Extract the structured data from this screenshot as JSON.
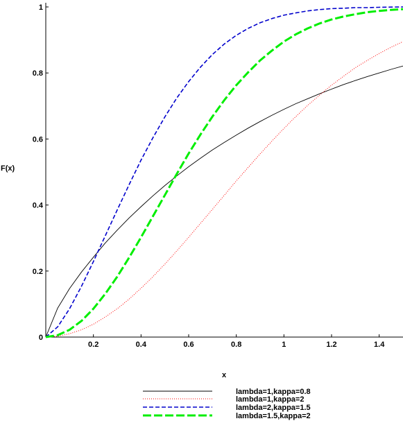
{
  "chart_data": {
    "type": "line",
    "title": "",
    "xlabel": "x",
    "ylabel": "F(x)",
    "xlim": [
      0,
      1.5
    ],
    "ylim": [
      0,
      1
    ],
    "x_ticks": [
      0.2,
      0.4,
      0.6,
      0.8,
      1,
      1.2,
      1.4
    ],
    "x_tick_labels": [
      "0.2",
      "0.4",
      "0.6",
      "0.8",
      "1",
      "1.2",
      "1.4"
    ],
    "y_ticks": [
      0,
      0.2,
      0.4,
      0.6,
      0.8,
      1
    ],
    "y_tick_labels": [
      "0",
      "0.2",
      "0.4",
      "0.6",
      "0.8",
      "1"
    ],
    "grid": false,
    "legend_position": "bottom",
    "x": [
      0,
      0.05,
      0.1,
      0.15,
      0.2,
      0.25,
      0.3,
      0.35,
      0.4,
      0.45,
      0.5,
      0.55,
      0.6,
      0.65,
      0.7,
      0.75,
      0.8,
      0.85,
      0.9,
      0.95,
      1,
      1.05,
      1.1,
      1.15,
      1.2,
      1.25,
      1.3,
      1.35,
      1.4,
      1.45,
      1.5
    ],
    "series": [
      {
        "name": "lambda=1,kappa=0.8",
        "color": "#000000",
        "style": "solid",
        "values": [
          0,
          0.088,
          0.147,
          0.197,
          0.242,
          0.285,
          0.324,
          0.361,
          0.395,
          0.428,
          0.459,
          0.488,
          0.516,
          0.542,
          0.567,
          0.59,
          0.612,
          0.633,
          0.653,
          0.672,
          0.69,
          0.707,
          0.722,
          0.737,
          0.751,
          0.765,
          0.777,
          0.789,
          0.8,
          0.811,
          0.821
        ]
      },
      {
        "name": "lambda=1,kappa=2",
        "color": "#ff0000",
        "style": "dotted",
        "values": [
          0,
          0.0025,
          0.01,
          0.022,
          0.039,
          0.061,
          0.086,
          0.115,
          0.148,
          0.183,
          0.221,
          0.261,
          0.302,
          0.345,
          0.387,
          0.43,
          0.473,
          0.514,
          0.555,
          0.594,
          0.632,
          0.668,
          0.702,
          0.733,
          0.763,
          0.79,
          0.816,
          0.838,
          0.859,
          0.878,
          0.895
        ]
      },
      {
        "name": "lambda=2,kappa=1.5",
        "color": "#0000cc",
        "style": "dashed",
        "values": [
          0,
          0.031,
          0.086,
          0.154,
          0.229,
          0.307,
          0.385,
          0.462,
          0.536,
          0.604,
          0.667,
          0.724,
          0.774,
          0.818,
          0.856,
          0.888,
          0.914,
          0.935,
          0.952,
          0.965,
          0.975,
          0.982,
          0.988,
          0.992,
          0.995,
          0.996,
          0.998,
          0.998,
          0.999,
          0.9995,
          1.0
        ]
      },
      {
        "name": "lambda=1.5,kappa=2",
        "color": "#00ee00",
        "style": "long-dash",
        "values": [
          0,
          0.0056,
          0.022,
          0.049,
          0.086,
          0.131,
          0.183,
          0.241,
          0.302,
          0.366,
          0.43,
          0.494,
          0.556,
          0.614,
          0.668,
          0.718,
          0.763,
          0.802,
          0.838,
          0.868,
          0.895,
          0.917,
          0.935,
          0.95,
          0.962,
          0.971,
          0.978,
          0.984,
          0.988,
          0.991,
          0.9933
        ]
      }
    ]
  }
}
